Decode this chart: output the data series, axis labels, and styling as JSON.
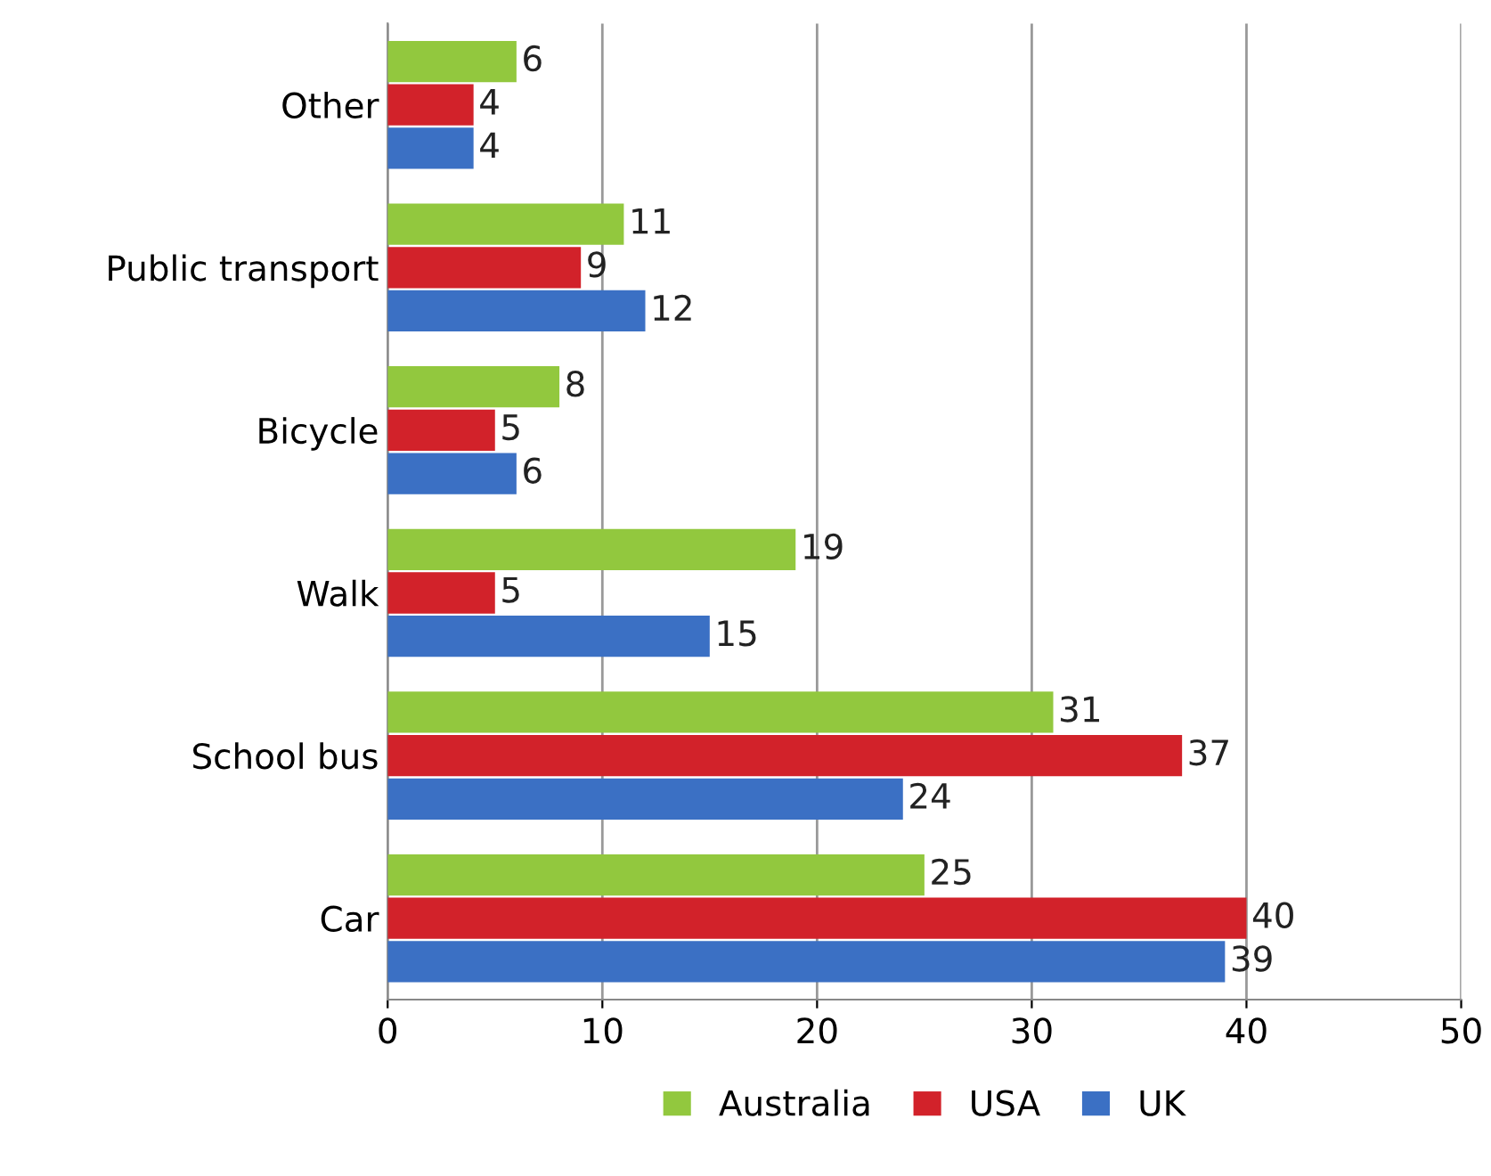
{
  "chart_data": {
    "type": "bar",
    "orientation": "horizontal",
    "categories": [
      "Other",
      "Public transport",
      "Bicycle",
      "Walk",
      "School bus",
      "Car"
    ],
    "series": [
      {
        "name": "Australia",
        "color": "#92c83e",
        "values": [
          6,
          11,
          8,
          19,
          31,
          25
        ]
      },
      {
        "name": "USA",
        "color": "#d2222a",
        "values": [
          4,
          9,
          5,
          5,
          37,
          40
        ]
      },
      {
        "name": "UK",
        "color": "#3b70c4",
        "values": [
          4,
          12,
          6,
          15,
          24,
          39
        ]
      }
    ],
    "xlim": [
      0,
      50
    ],
    "xticks": [
      0,
      10,
      20,
      30,
      40,
      50
    ],
    "grid": "x",
    "legend": "bottom",
    "data_labels": true
  }
}
